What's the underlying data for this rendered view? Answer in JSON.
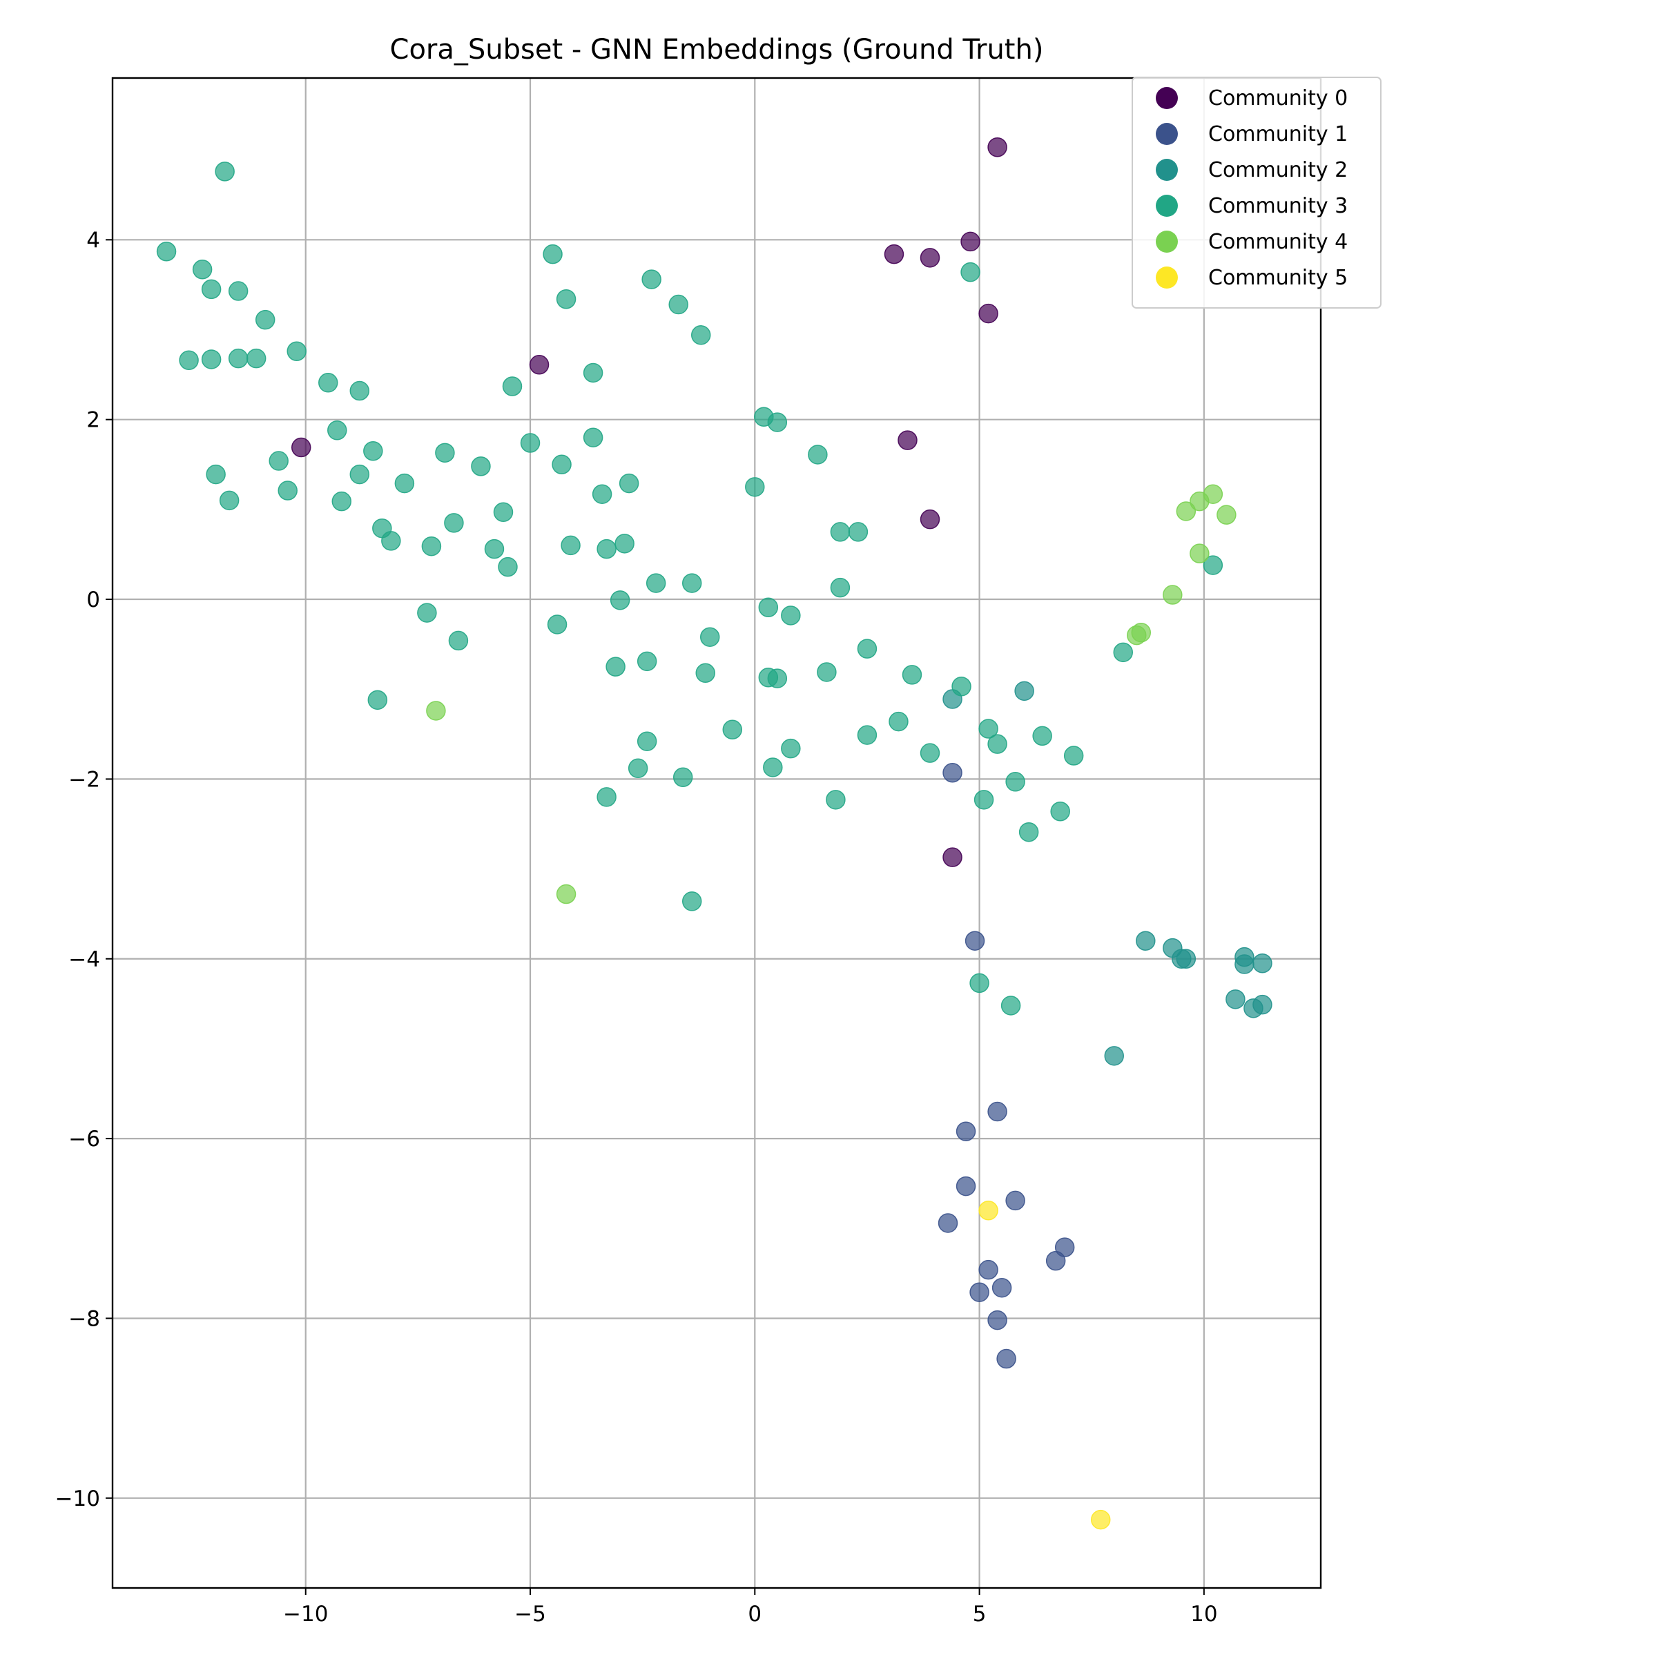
{
  "chart_data": {
    "type": "scatter",
    "title": "Cora_Subset - GNN Embeddings (Ground Truth)",
    "xlabel": "",
    "ylabel": "",
    "xlim": [
      -14.3,
      12.6
    ],
    "ylim": [
      -11.0,
      5.8
    ],
    "xticks": [
      -10,
      -5,
      0,
      5,
      10
    ],
    "yticks": [
      -10,
      -8,
      -6,
      -4,
      -2,
      0,
      2,
      4
    ],
    "grid": true,
    "legend_position": "top-right",
    "series": [
      {
        "name": "Community 0",
        "color": "#440154",
        "points": [
          [
            5.4,
            5.03
          ],
          [
            3.1,
            3.84
          ],
          [
            3.9,
            3.8
          ],
          [
            4.8,
            3.98
          ],
          [
            5.2,
            3.18
          ],
          [
            -4.8,
            2.61
          ],
          [
            -10.1,
            1.69
          ],
          [
            3.4,
            1.77
          ],
          [
            3.9,
            0.89
          ],
          [
            4.4,
            -2.87
          ]
        ]
      },
      {
        "name": "Community 1",
        "color": "#3b528b",
        "points": [
          [
            4.4,
            -1.93
          ],
          [
            4.9,
            -3.8
          ],
          [
            5.4,
            -5.7
          ],
          [
            4.7,
            -5.92
          ],
          [
            4.7,
            -6.53
          ],
          [
            5.8,
            -6.69
          ],
          [
            4.3,
            -6.94
          ],
          [
            6.9,
            -7.21
          ],
          [
            6.7,
            -7.36
          ],
          [
            5.2,
            -7.46
          ],
          [
            5.5,
            -7.66
          ],
          [
            5.0,
            -7.71
          ],
          [
            5.4,
            -8.02
          ],
          [
            5.6,
            -8.45
          ]
        ]
      },
      {
        "name": "Community 2",
        "color": "#21918c",
        "points": [
          [
            4.4,
            -1.11
          ],
          [
            6.0,
            -1.02
          ],
          [
            8.7,
            -3.8
          ],
          [
            9.3,
            -3.88
          ],
          [
            9.5,
            -4.0
          ],
          [
            9.6,
            -4.0
          ],
          [
            10.9,
            -3.98
          ],
          [
            10.9,
            -4.06
          ],
          [
            11.3,
            -4.05
          ],
          [
            10.7,
            -4.45
          ],
          [
            11.1,
            -4.55
          ],
          [
            11.3,
            -4.51
          ],
          [
            8.0,
            -5.08
          ]
        ]
      },
      {
        "name": "Community 3",
        "color": "#21a685",
        "points": [
          [
            -11.8,
            4.76
          ],
          [
            -13.1,
            3.87
          ],
          [
            -12.3,
            3.67
          ],
          [
            -12.1,
            3.45
          ],
          [
            -11.5,
            3.43
          ],
          [
            -10.9,
            3.11
          ],
          [
            -12.6,
            2.66
          ],
          [
            -12.1,
            2.67
          ],
          [
            -11.5,
            2.68
          ],
          [
            -11.1,
            2.68
          ],
          [
            -10.2,
            2.76
          ],
          [
            -9.5,
            2.41
          ],
          [
            -8.8,
            2.32
          ],
          [
            -9.3,
            1.88
          ],
          [
            -8.5,
            1.65
          ],
          [
            -10.6,
            1.54
          ],
          [
            -12.0,
            1.39
          ],
          [
            -11.7,
            1.1
          ],
          [
            -10.4,
            1.21
          ],
          [
            -9.2,
            1.09
          ],
          [
            -8.8,
            1.39
          ],
          [
            -7.8,
            1.29
          ],
          [
            -6.9,
            1.63
          ],
          [
            -6.1,
            1.48
          ],
          [
            -8.3,
            0.79
          ],
          [
            -8.1,
            0.65
          ],
          [
            -7.2,
            0.59
          ],
          [
            -6.7,
            0.85
          ],
          [
            -5.6,
            0.97
          ],
          [
            -5.8,
            0.56
          ],
          [
            -5.5,
            0.36
          ],
          [
            -7.3,
            -0.15
          ],
          [
            -6.6,
            -0.46
          ],
          [
            -8.4,
            -1.12
          ],
          [
            -4.5,
            3.84
          ],
          [
            -4.2,
            3.34
          ],
          [
            -2.3,
            3.56
          ],
          [
            -1.7,
            3.28
          ],
          [
            -1.2,
            2.94
          ],
          [
            -5.4,
            2.37
          ],
          [
            -3.6,
            2.52
          ],
          [
            -5.0,
            1.74
          ],
          [
            -3.6,
            1.8
          ],
          [
            -4.3,
            1.5
          ],
          [
            -3.4,
            1.17
          ],
          [
            -2.8,
            1.29
          ],
          [
            -4.1,
            0.6
          ],
          [
            -3.3,
            0.56
          ],
          [
            -2.9,
            0.62
          ],
          [
            -2.2,
            0.18
          ],
          [
            -1.4,
            0.18
          ],
          [
            -3.0,
            -0.01
          ],
          [
            -4.4,
            -0.28
          ],
          [
            -1.0,
            -0.42
          ],
          [
            -3.1,
            -0.75
          ],
          [
            -2.4,
            -0.69
          ],
          [
            -1.1,
            -0.82
          ],
          [
            -2.4,
            -1.58
          ],
          [
            -0.5,
            -1.45
          ],
          [
            -2.6,
            -1.88
          ],
          [
            -1.6,
            -1.98
          ],
          [
            -3.3,
            -2.2
          ],
          [
            -1.4,
            -3.36
          ],
          [
            0.2,
            2.03
          ],
          [
            0.5,
            1.97
          ],
          [
            0.0,
            1.25
          ],
          [
            1.4,
            1.61
          ],
          [
            1.9,
            0.75
          ],
          [
            2.3,
            0.75
          ],
          [
            1.9,
            0.13
          ],
          [
            0.3,
            -0.09
          ],
          [
            0.8,
            -0.18
          ],
          [
            2.5,
            -0.55
          ],
          [
            0.3,
            -0.87
          ],
          [
            0.5,
            -0.88
          ],
          [
            1.6,
            -0.81
          ],
          [
            3.5,
            -0.84
          ],
          [
            4.6,
            -0.97
          ],
          [
            3.2,
            -1.36
          ],
          [
            2.5,
            -1.51
          ],
          [
            5.2,
            -1.44
          ],
          [
            5.4,
            -1.61
          ],
          [
            6.4,
            -1.52
          ],
          [
            7.1,
            -1.74
          ],
          [
            0.8,
            -1.66
          ],
          [
            0.4,
            -1.87
          ],
          [
            3.9,
            -1.71
          ],
          [
            5.8,
            -2.03
          ],
          [
            1.8,
            -2.23
          ],
          [
            5.1,
            -2.23
          ],
          [
            6.8,
            -2.36
          ],
          [
            6.1,
            -2.59
          ],
          [
            4.8,
            3.64
          ],
          [
            8.2,
            -0.59
          ],
          [
            10.2,
            0.38
          ],
          [
            5.0,
            -4.27
          ],
          [
            5.7,
            -4.52
          ]
        ]
      },
      {
        "name": "Community 4",
        "color": "#7ad151",
        "points": [
          [
            9.6,
            0.98
          ],
          [
            9.9,
            1.09
          ],
          [
            10.2,
            1.17
          ],
          [
            10.5,
            0.94
          ],
          [
            9.9,
            0.51
          ],
          [
            9.3,
            0.05
          ],
          [
            8.5,
            -0.4
          ],
          [
            8.6,
            -0.37
          ],
          [
            -7.1,
            -1.24
          ],
          [
            -4.2,
            -3.28
          ]
        ]
      },
      {
        "name": "Community 5",
        "color": "#fde725",
        "points": [
          [
            5.2,
            -6.8
          ],
          [
            7.7,
            -10.24
          ]
        ]
      }
    ]
  }
}
